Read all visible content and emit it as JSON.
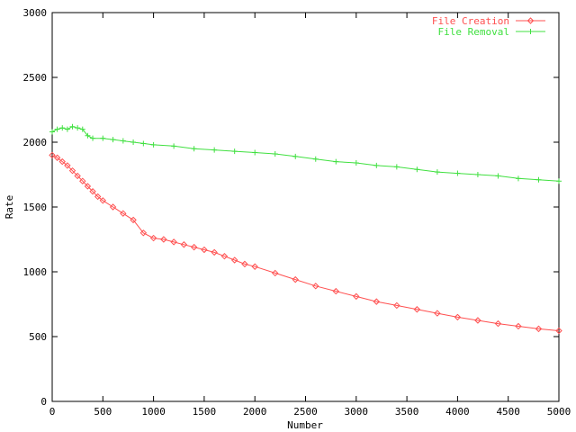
{
  "chart_data": {
    "type": "line",
    "title": "",
    "xlabel": "Number",
    "ylabel": "Rate",
    "xlim": [
      0,
      5000
    ],
    "ylim": [
      0,
      3000
    ],
    "x_ticks": [
      0,
      500,
      1000,
      1500,
      2000,
      2500,
      3000,
      3500,
      4000,
      4500,
      5000
    ],
    "y_ticks": [
      0,
      500,
      1000,
      1500,
      2000,
      2500,
      3000
    ],
    "x_tick_labels": [
      "0",
      "500",
      "1000",
      "1500",
      "2000",
      "2500",
      "3000",
      "3500",
      "4000",
      "4500",
      "5000"
    ],
    "y_tick_labels": [
      "0",
      "500",
      "1000",
      "1500",
      "2000",
      "2500",
      "3000"
    ],
    "grid": false,
    "legend_position": "top-right",
    "series": [
      {
        "name": "File Creation",
        "color": "#ff5050",
        "marker": "diamond",
        "x": [
          0,
          50,
          100,
          150,
          200,
          250,
          300,
          350,
          400,
          450,
          500,
          600,
          700,
          800,
          900,
          1000,
          1100,
          1200,
          1300,
          1400,
          1500,
          1600,
          1700,
          1800,
          1900,
          2000,
          2200,
          2400,
          2600,
          2800,
          3000,
          3200,
          3400,
          3600,
          3800,
          4000,
          4200,
          4400,
          4600,
          4800,
          5000
        ],
        "y": [
          1900,
          1880,
          1850,
          1820,
          1780,
          1740,
          1700,
          1660,
          1620,
          1580,
          1550,
          1500,
          1450,
          1400,
          1300,
          1260,
          1250,
          1230,
          1210,
          1190,
          1170,
          1150,
          1120,
          1090,
          1060,
          1040,
          990,
          940,
          890,
          850,
          810,
          770,
          740,
          710,
          680,
          650,
          625,
          600,
          580,
          560,
          545
        ]
      },
      {
        "name": "File Removal",
        "color": "#40e040",
        "marker": "plus",
        "x": [
          0,
          50,
          100,
          150,
          200,
          250,
          300,
          350,
          400,
          500,
          600,
          700,
          800,
          900,
          1000,
          1200,
          1400,
          1600,
          1800,
          2000,
          2200,
          2400,
          2600,
          2800,
          3000,
          3200,
          3400,
          3600,
          3800,
          4000,
          4200,
          4400,
          4600,
          4800,
          5000
        ],
        "y": [
          2080,
          2100,
          2110,
          2100,
          2120,
          2110,
          2100,
          2050,
          2030,
          2030,
          2020,
          2010,
          2000,
          1990,
          1980,
          1970,
          1950,
          1940,
          1930,
          1920,
          1910,
          1890,
          1870,
          1850,
          1840,
          1820,
          1810,
          1790,
          1770,
          1760,
          1750,
          1740,
          1720,
          1710,
          1700
        ]
      }
    ]
  }
}
